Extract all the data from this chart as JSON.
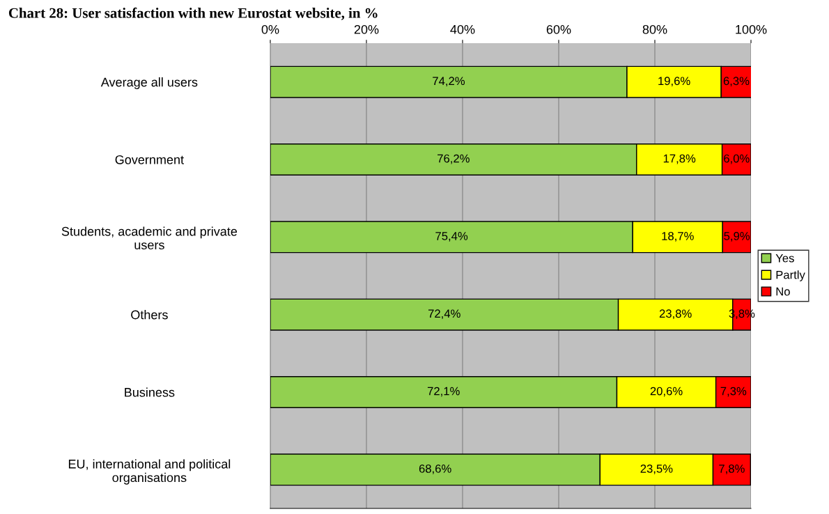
{
  "chart_data": {
    "type": "bar",
    "orientation": "horizontal",
    "stacked": true,
    "title": "Chart 28: User satisfaction with new Eurostat website, in %",
    "categories": [
      "Average all users",
      "Government",
      "Students, academic and private users",
      "Others",
      "Business",
      "EU, international and political organisations"
    ],
    "series": [
      {
        "name": "Yes",
        "color": "#92d050",
        "values": [
          74.2,
          76.2,
          75.4,
          72.4,
          72.1,
          68.6
        ],
        "value_labels": [
          "74,2%",
          "76,2%",
          "75,4%",
          "72,4%",
          "72,1%",
          "68,6%"
        ]
      },
      {
        "name": "Partly",
        "color": "#ffff00",
        "values": [
          19.6,
          17.8,
          18.7,
          23.8,
          20.6,
          23.5
        ],
        "value_labels": [
          "19,6%",
          "17,8%",
          "18,7%",
          "23,8%",
          "20,6%",
          "23,5%"
        ]
      },
      {
        "name": "No",
        "color": "#ff0000",
        "values": [
          6.3,
          6.0,
          5.9,
          3.8,
          7.3,
          7.8
        ],
        "value_labels": [
          "6,3%",
          "6,0%",
          "5,9%",
          "3,8%",
          "7,3%",
          "7,8%"
        ]
      }
    ],
    "xlim": [
      0,
      100
    ],
    "xticks": [
      {
        "value": 0,
        "label": "0%"
      },
      {
        "value": 20,
        "label": "20%"
      },
      {
        "value": 40,
        "label": "40%"
      },
      {
        "value": 60,
        "label": "60%"
      },
      {
        "value": 80,
        "label": "80%"
      },
      {
        "value": 100,
        "label": "100%"
      }
    ],
    "grid": "x",
    "legend": "right"
  }
}
